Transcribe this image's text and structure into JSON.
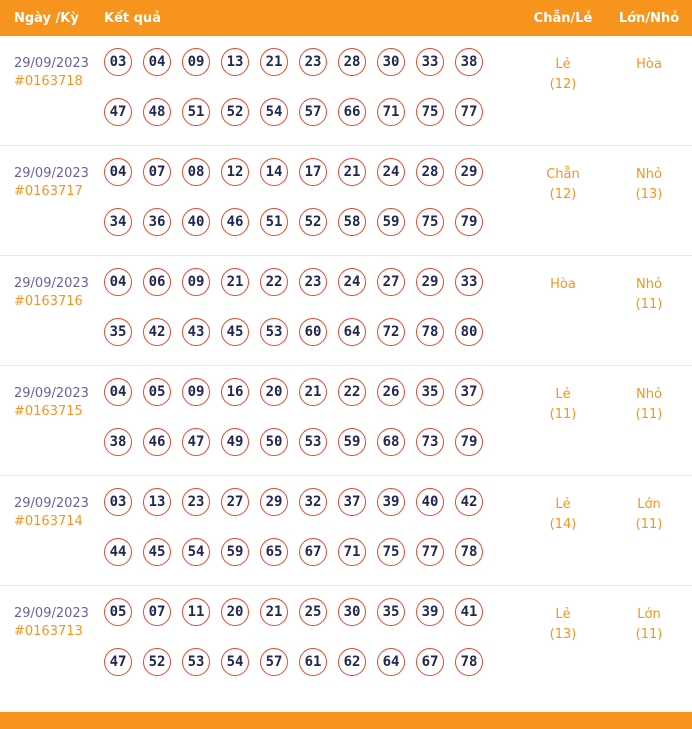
{
  "header": {
    "col_date": "Ngày /Kỳ",
    "col_result": "Kết quả",
    "col_evenodd": "Chẵn/Lẻ",
    "col_bigsmall": "Lớn/Nhỏ"
  },
  "colors": {
    "accent_orange": "#F7941E",
    "ball_border_red": "#E24A32",
    "ball_number_navy": "#222750",
    "date_purple": "#6B5FA3"
  },
  "rows": [
    {
      "date": "29/09/2023",
      "period": "#0163718",
      "numbers_line1": [
        "03",
        "04",
        "09",
        "13",
        "21",
        "23",
        "28",
        "30",
        "33",
        "38"
      ],
      "numbers_line2": [
        "47",
        "48",
        "51",
        "52",
        "54",
        "57",
        "66",
        "71",
        "75",
        "77"
      ],
      "evenodd": "Lẻ",
      "evenodd_count": "(12)",
      "bigsmall": "Hòa",
      "bigsmall_count": ""
    },
    {
      "date": "29/09/2023",
      "period": "#0163717",
      "numbers_line1": [
        "04",
        "07",
        "08",
        "12",
        "14",
        "17",
        "21",
        "24",
        "28",
        "29"
      ],
      "numbers_line2": [
        "34",
        "36",
        "40",
        "46",
        "51",
        "52",
        "58",
        "59",
        "75",
        "79"
      ],
      "evenodd": "Chẵn",
      "evenodd_count": "(12)",
      "bigsmall": "Nhỏ",
      "bigsmall_count": "(13)"
    },
    {
      "date": "29/09/2023",
      "period": "#0163716",
      "numbers_line1": [
        "04",
        "06",
        "09",
        "21",
        "22",
        "23",
        "24",
        "27",
        "29",
        "33"
      ],
      "numbers_line2": [
        "35",
        "42",
        "43",
        "45",
        "53",
        "60",
        "64",
        "72",
        "78",
        "80"
      ],
      "evenodd": "Hòa",
      "evenodd_count": "",
      "bigsmall": "Nhỏ",
      "bigsmall_count": "(11)"
    },
    {
      "date": "29/09/2023",
      "period": "#0163715",
      "numbers_line1": [
        "04",
        "05",
        "09",
        "16",
        "20",
        "21",
        "22",
        "26",
        "35",
        "37"
      ],
      "numbers_line2": [
        "38",
        "46",
        "47",
        "49",
        "50",
        "53",
        "59",
        "68",
        "73",
        "79"
      ],
      "evenodd": "Lẻ",
      "evenodd_count": "(11)",
      "bigsmall": "Nhỏ",
      "bigsmall_count": "(11)"
    },
    {
      "date": "29/09/2023",
      "period": "#0163714",
      "numbers_line1": [
        "03",
        "13",
        "23",
        "27",
        "29",
        "32",
        "37",
        "39",
        "40",
        "42"
      ],
      "numbers_line2": [
        "44",
        "45",
        "54",
        "59",
        "65",
        "67",
        "71",
        "75",
        "77",
        "78"
      ],
      "evenodd": "Lẻ",
      "evenodd_count": "(14)",
      "bigsmall": "Lớn",
      "bigsmall_count": "(11)"
    },
    {
      "date": "29/09/2023",
      "period": "#0163713",
      "numbers_line1": [
        "05",
        "07",
        "11",
        "20",
        "21",
        "25",
        "30",
        "35",
        "39",
        "41"
      ],
      "numbers_line2": [
        "47",
        "52",
        "53",
        "54",
        "57",
        "61",
        "62",
        "64",
        "67",
        "78"
      ],
      "evenodd": "Lẻ",
      "evenodd_count": "(13)",
      "bigsmall": "Lớn",
      "bigsmall_count": "(11)"
    }
  ]
}
